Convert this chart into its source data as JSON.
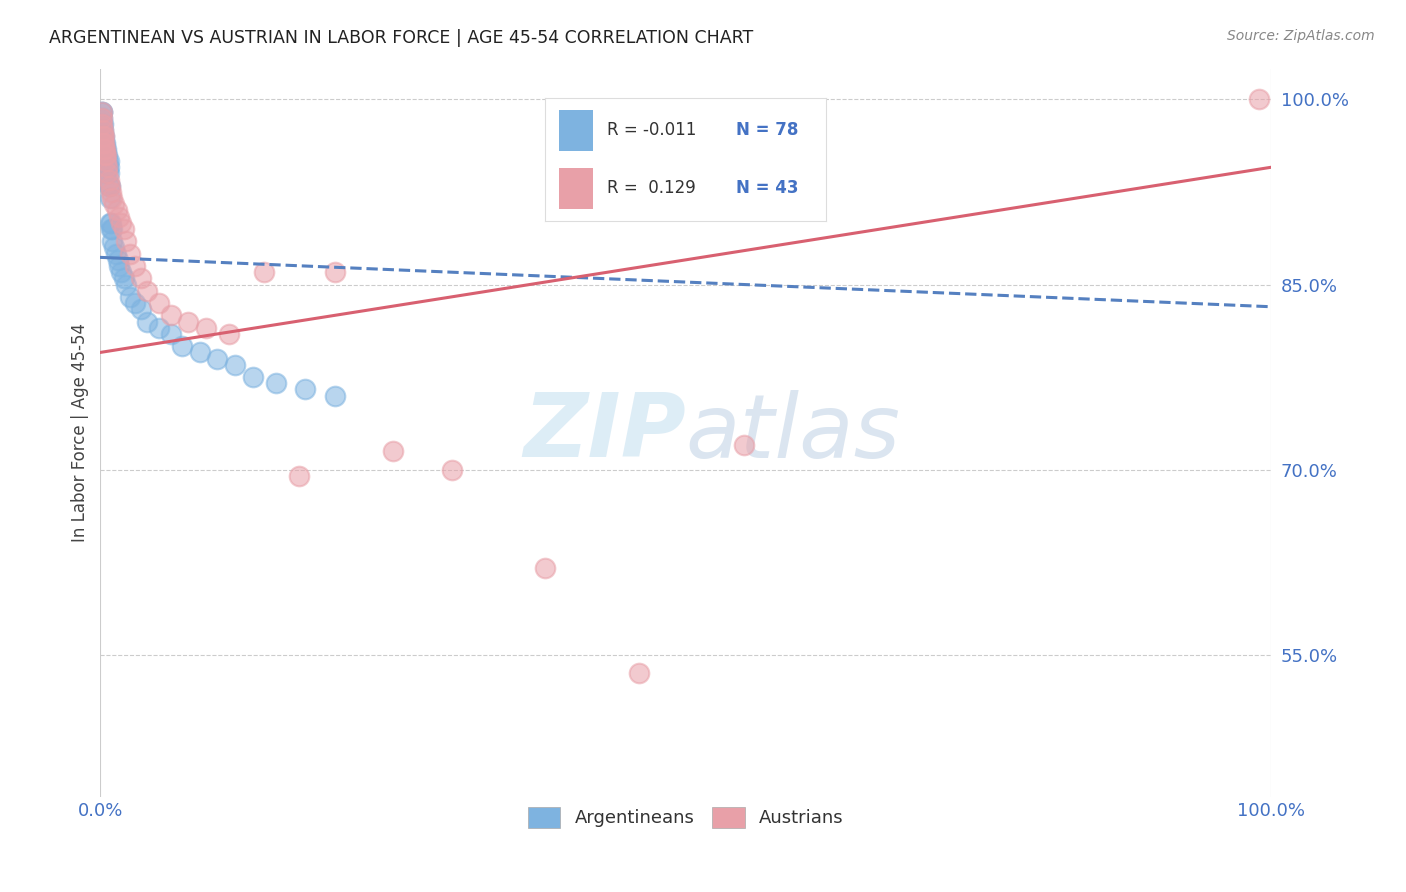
{
  "title": "ARGENTINEAN VS AUSTRIAN IN LABOR FORCE | AGE 45-54 CORRELATION CHART",
  "source": "Source: ZipAtlas.com",
  "ylabel": "In Labor Force | Age 45-54",
  "ytick_labels": [
    "100.0%",
    "85.0%",
    "70.0%",
    "55.0%"
  ],
  "ytick_values": [
    1.0,
    0.85,
    0.7,
    0.55
  ],
  "xlim": [
    0.0,
    1.0
  ],
  "ylim": [
    0.435,
    1.025
  ],
  "blue_color": "#7eb3e0",
  "pink_color": "#e8a0a8",
  "blue_line_color": "#5580c0",
  "pink_line_color": "#d86070",
  "text_color_blue": "#4472c4",
  "grid_color": "#cccccc",
  "watermark_color": "#d8eaf5",
  "blue_trend_y_start": 0.872,
  "blue_trend_y_end": 0.832,
  "pink_trend_y_start": 0.795,
  "pink_trend_y_end": 0.945,
  "argentineans_x": [
    0.001,
    0.001,
    0.001,
    0.001,
    0.001,
    0.002,
    0.002,
    0.002,
    0.002,
    0.002,
    0.002,
    0.003,
    0.003,
    0.003,
    0.003,
    0.003,
    0.004,
    0.004,
    0.004,
    0.004,
    0.005,
    0.005,
    0.005,
    0.005,
    0.005,
    0.006,
    0.006,
    0.006,
    0.007,
    0.007,
    0.007,
    0.007,
    0.008,
    0.008,
    0.008,
    0.009,
    0.009,
    0.01,
    0.01,
    0.012,
    0.013,
    0.015,
    0.016,
    0.018,
    0.02,
    0.022,
    0.025,
    0.03,
    0.035,
    0.04,
    0.05,
    0.06,
    0.07,
    0.085,
    0.1,
    0.115,
    0.13,
    0.15,
    0.175,
    0.2
  ],
  "argentineans_y": [
    0.99,
    0.99,
    0.985,
    0.98,
    0.975,
    0.98,
    0.975,
    0.97,
    0.96,
    0.955,
    0.95,
    0.97,
    0.965,
    0.96,
    0.955,
    0.95,
    0.965,
    0.96,
    0.955,
    0.95,
    0.96,
    0.955,
    0.95,
    0.945,
    0.94,
    0.955,
    0.95,
    0.945,
    0.95,
    0.945,
    0.94,
    0.93,
    0.93,
    0.92,
    0.9,
    0.9,
    0.895,
    0.895,
    0.885,
    0.88,
    0.875,
    0.87,
    0.865,
    0.86,
    0.855,
    0.85,
    0.84,
    0.835,
    0.83,
    0.82,
    0.815,
    0.81,
    0.8,
    0.795,
    0.79,
    0.785,
    0.775,
    0.77,
    0.765,
    0.76
  ],
  "austrians_x": [
    0.001,
    0.001,
    0.001,
    0.002,
    0.002,
    0.002,
    0.003,
    0.003,
    0.003,
    0.004,
    0.004,
    0.005,
    0.005,
    0.006,
    0.006,
    0.007,
    0.008,
    0.009,
    0.01,
    0.012,
    0.014,
    0.016,
    0.018,
    0.02,
    0.022,
    0.025,
    0.03,
    0.035,
    0.04,
    0.05,
    0.06,
    0.075,
    0.09,
    0.11,
    0.14,
    0.17,
    0.2,
    0.25,
    0.3,
    0.38,
    0.46,
    0.55,
    0.99
  ],
  "austrians_y": [
    0.99,
    0.985,
    0.98,
    0.975,
    0.97,
    0.965,
    0.97,
    0.965,
    0.96,
    0.96,
    0.955,
    0.955,
    0.95,
    0.945,
    0.94,
    0.935,
    0.93,
    0.925,
    0.92,
    0.915,
    0.91,
    0.905,
    0.9,
    0.895,
    0.885,
    0.875,
    0.865,
    0.855,
    0.845,
    0.835,
    0.825,
    0.82,
    0.815,
    0.81,
    0.86,
    0.695,
    0.86,
    0.715,
    0.7,
    0.62,
    0.535,
    0.72,
    1.0
  ]
}
